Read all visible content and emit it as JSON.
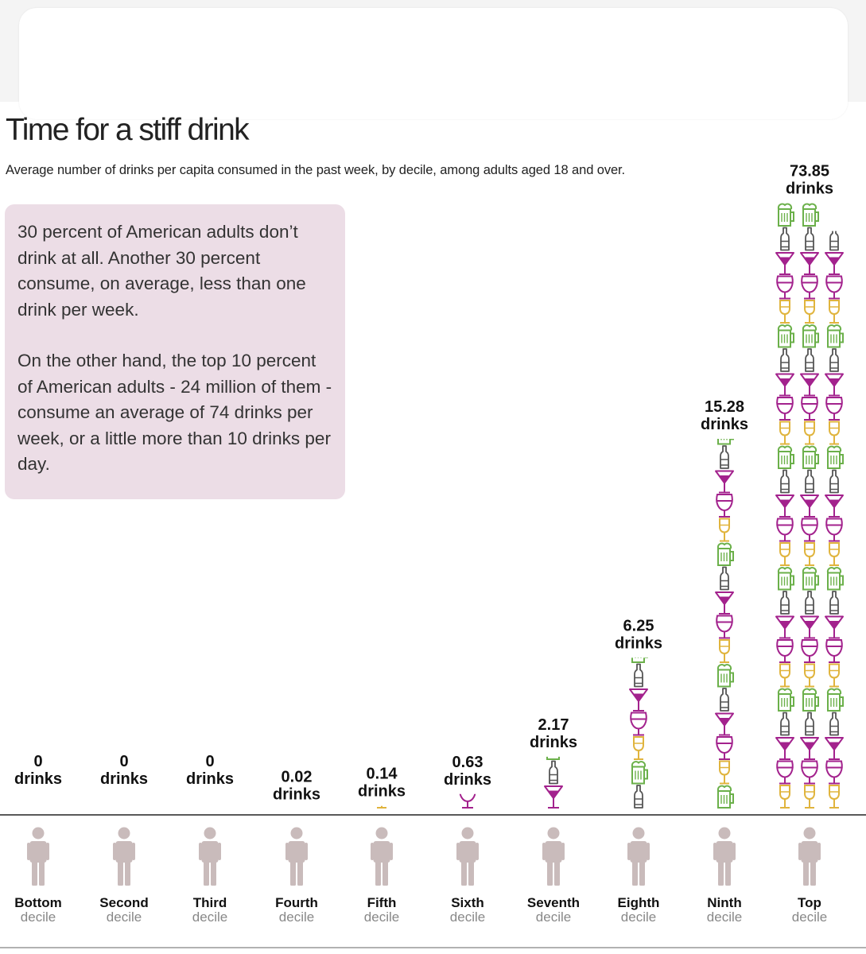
{
  "colors": {
    "wine": "#a3228d",
    "martini": "#a3228d",
    "beer_bottle": "#555555",
    "beer_mug": "#6bb04a",
    "white_wine": "#e0b43d",
    "person": "#c9bbbb",
    "note_box": "#ecdde6"
  },
  "note": {
    "paragraph1": "30 percent of American adults don’t drink at all. Another 30 percent consume, on average, less than one drink per week.",
    "paragraph2": "On the other hand, the top 10 percent of American adults - 24 million of them - consume an average of 74 drinks per week, or a little more than 10 drinks per day."
  },
  "chart_data": {
    "type": "bar",
    "title": "Time for a stiff drink",
    "subtitle": "Average number of drinks per capita consumed in the past week, by decile, among adults aged 18 and over.",
    "categories": [
      "Bottom",
      "Second",
      "Third",
      "Fourth",
      "Fifth",
      "Sixth",
      "Seventh",
      "Eighth",
      "Ninth",
      "Top"
    ],
    "category_sublabel": "decile",
    "values": [
      0,
      0,
      0,
      0.02,
      0.14,
      0.63,
      2.17,
      6.25,
      15.28,
      73.85
    ],
    "value_labels": [
      "0",
      "0",
      "0",
      "0.02",
      "0.14",
      "0.63",
      "2.17",
      "6.25",
      "15.28",
      "73.85"
    ],
    "unit": "drinks",
    "icon_sequence": [
      "wine-glass",
      "martini-glass",
      "beer-bottle",
      "beer-mug",
      "white-wine-glass"
    ],
    "grid": false,
    "legend": "none"
  }
}
